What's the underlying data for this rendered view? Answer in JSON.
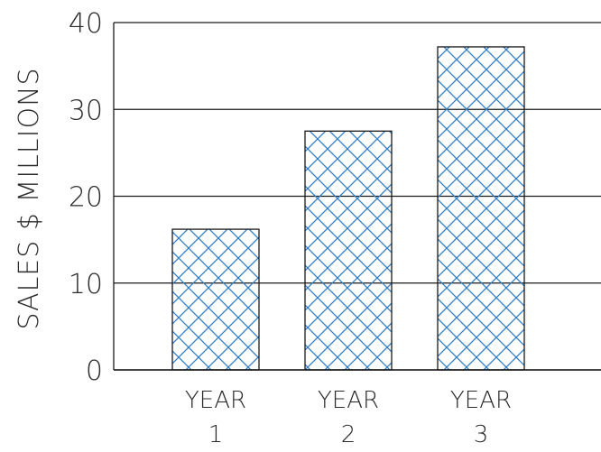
{
  "chart_data": {
    "type": "bar",
    "categories": [
      "YEAR 1",
      "YEAR 2",
      "YEAR 3"
    ],
    "category_lines": [
      [
        "YEAR",
        "1"
      ],
      [
        "YEAR",
        "2"
      ],
      [
        "YEAR",
        "3"
      ]
    ],
    "values": [
      16.2,
      27.5,
      37.2
    ],
    "title": "",
    "xlabel": "",
    "ylabel": "SALES $ MILLIONS",
    "ylim": [
      0,
      40
    ],
    "yticks": [
      0,
      10,
      20,
      30,
      40
    ],
    "ytick_labels": [
      "0",
      "10",
      "20",
      "30",
      "40"
    ],
    "grid": true,
    "legend": "none",
    "bar_fill": "crosshatch",
    "hatch_color": "#2f7dc4",
    "bar_edge_color": "#1a1a1a",
    "grid_color": "#1a1a1a",
    "text_color": "#2b2b2b"
  }
}
